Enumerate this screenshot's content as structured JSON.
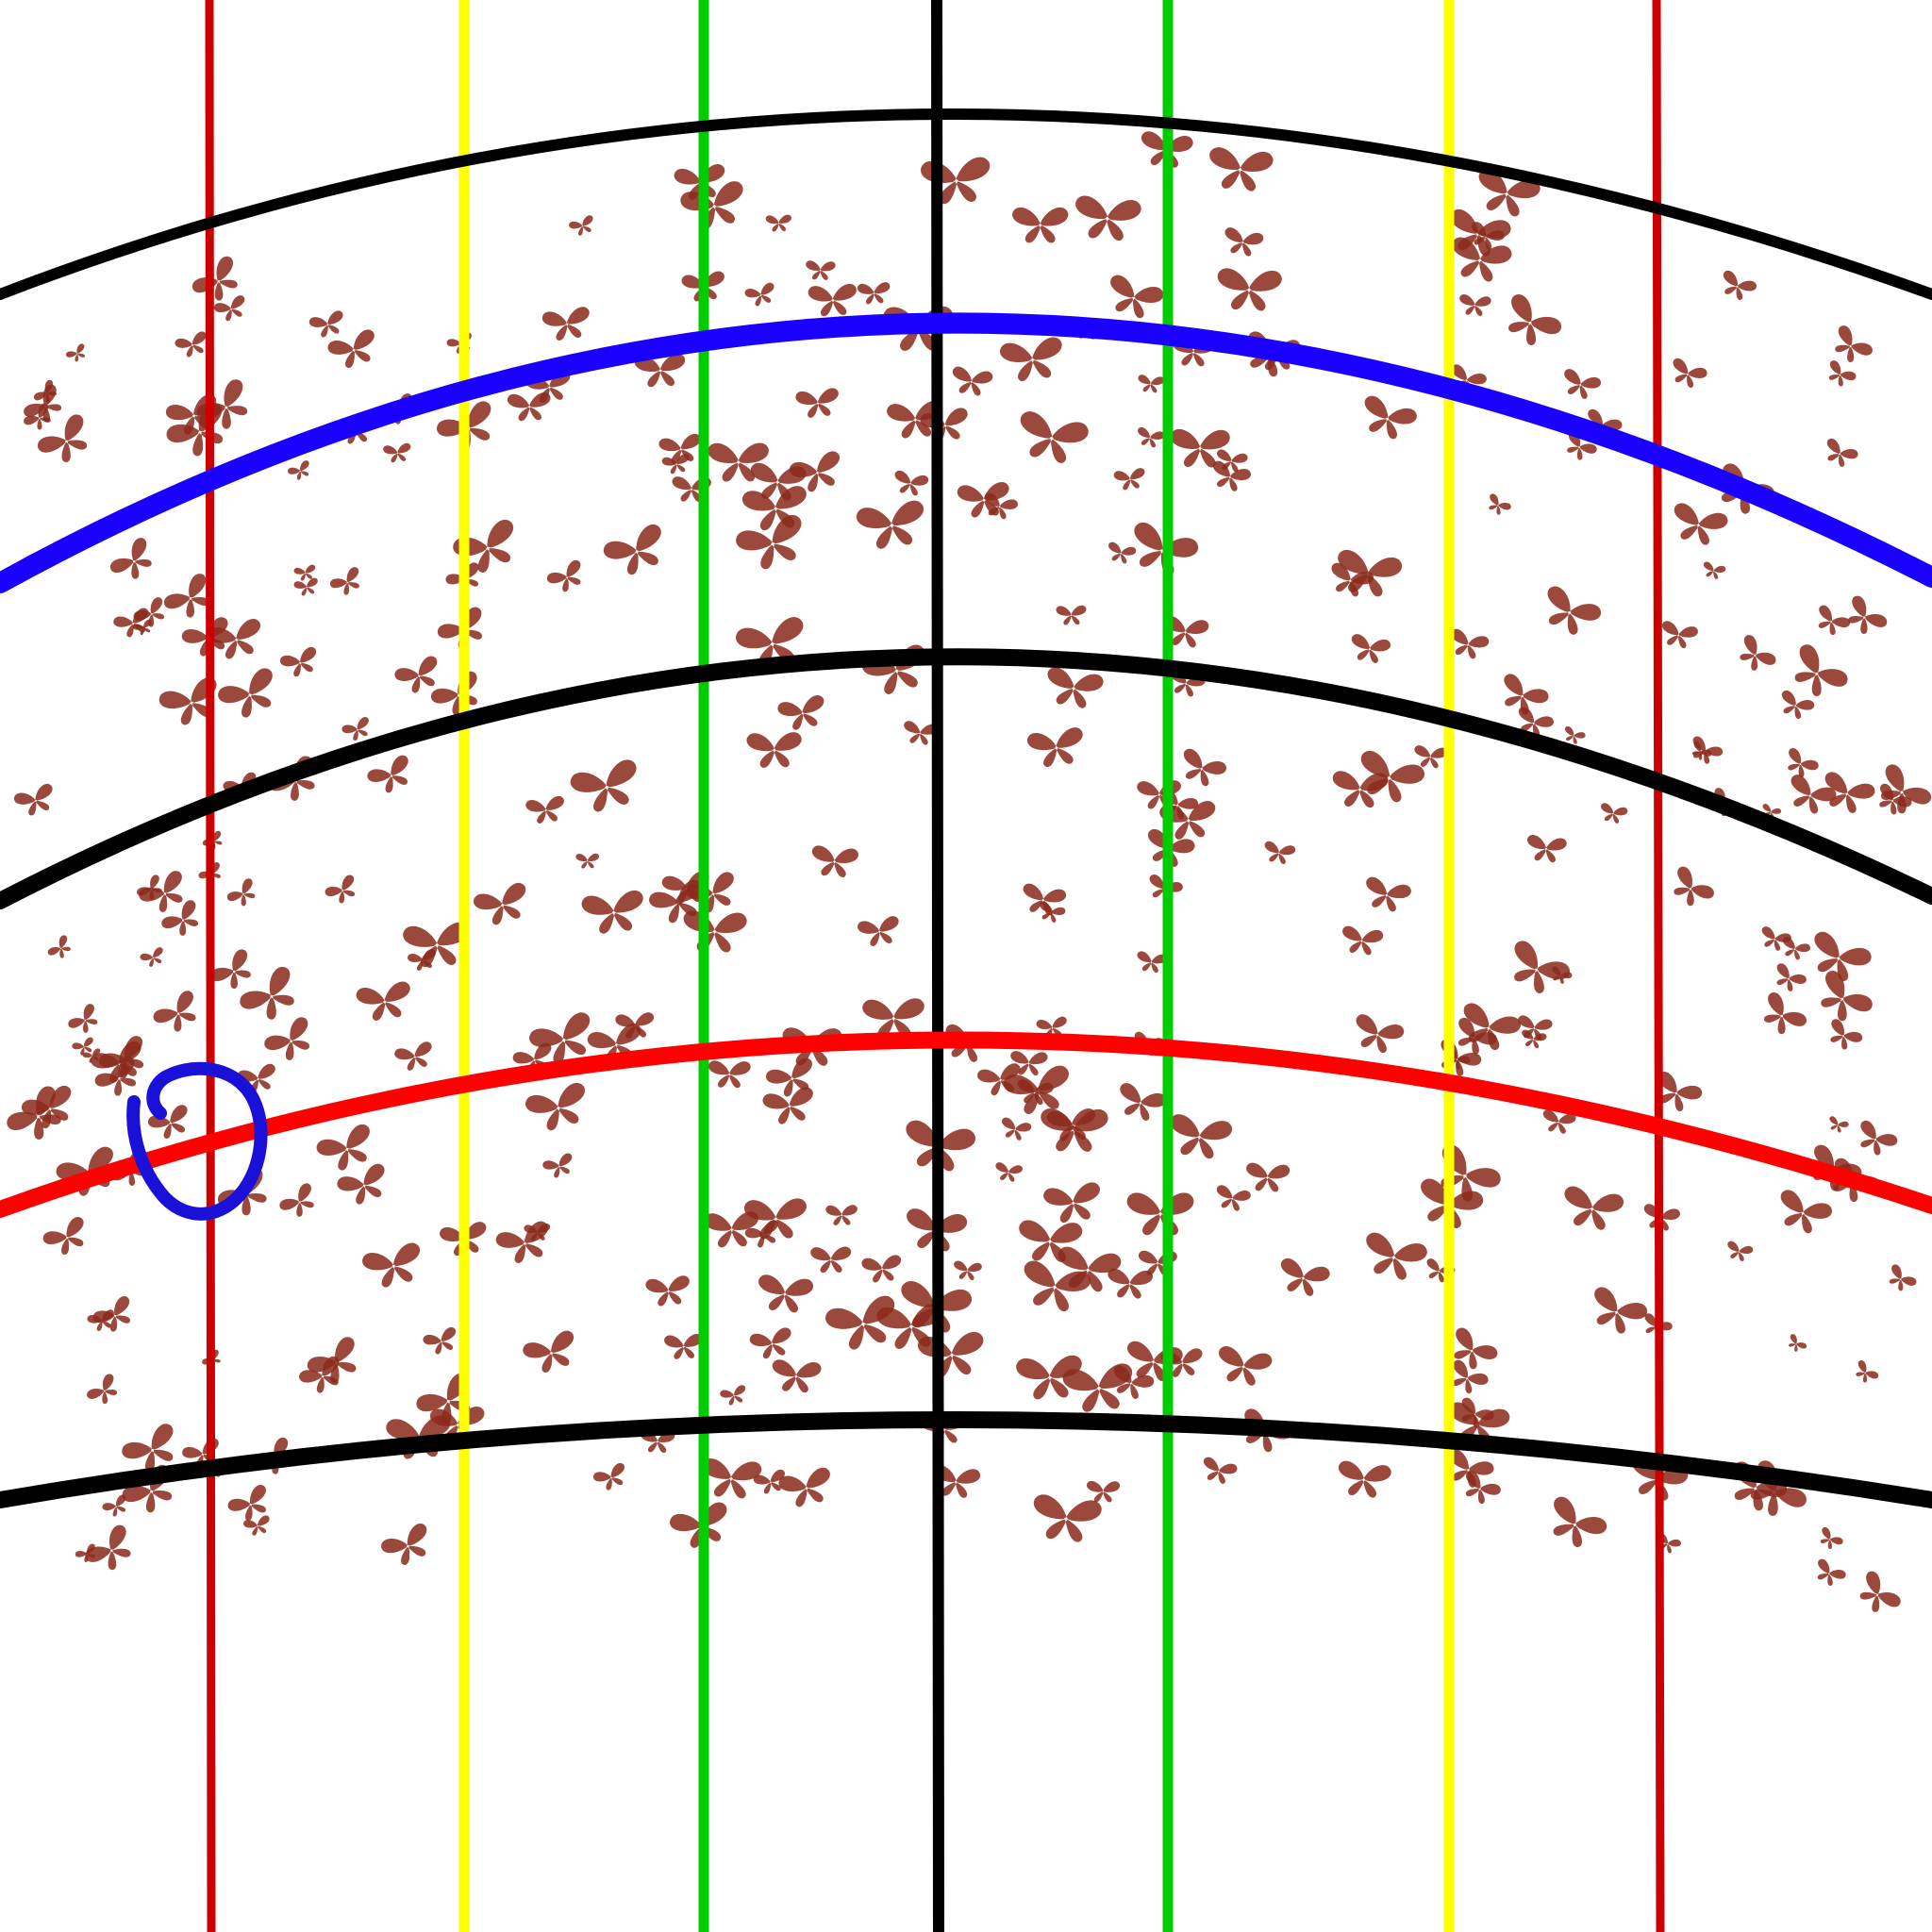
{
  "diagram": {
    "background": "#ffffff",
    "colors": {
      "black_curve": "#000000",
      "blue_curve": "#1a00ff",
      "red_curve": "#ff0000",
      "outer_verticals": "#cc0000",
      "middle_verticals": "#ffff00",
      "inner_verticals": "#00cc00",
      "center_vertical": "#000000",
      "circle_marker": "#1a10d8",
      "butterfly": "#8b2a1c"
    },
    "curves": [
      {
        "name": "top-black-arc",
        "color_key": "black_curve"
      },
      {
        "name": "blue-arc",
        "color_key": "blue_curve"
      },
      {
        "name": "middle-black-arc",
        "color_key": "black_curve"
      },
      {
        "name": "red-arc",
        "color_key": "red_curve"
      },
      {
        "name": "bottom-black-arc",
        "color_key": "black_curve"
      }
    ],
    "vertical_lines": [
      {
        "name": "outer-left-red-line",
        "color_key": "outer_verticals"
      },
      {
        "name": "left-yellow-line",
        "color_key": "middle_verticals"
      },
      {
        "name": "left-green-line",
        "color_key": "inner_verticals"
      },
      {
        "name": "center-black-line",
        "color_key": "center_vertical"
      },
      {
        "name": "right-green-line",
        "color_key": "inner_verticals"
      },
      {
        "name": "right-yellow-line",
        "color_key": "middle_verticals"
      },
      {
        "name": "outer-right-red-line",
        "color_key": "outer_verticals"
      }
    ],
    "marker": {
      "name": "hand-drawn-circle",
      "color_key": "circle_marker"
    },
    "butterfly_icon": "butterfly-icon"
  }
}
